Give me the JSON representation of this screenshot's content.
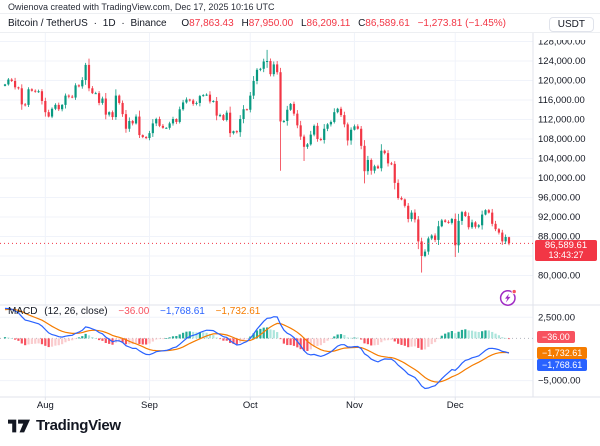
{
  "attribution": {
    "text": "Owienova created with TradingView.com, Dec 17, 2025 10:16 UTC"
  },
  "header": {
    "symbol": "Bitcoin / TetherUS",
    "separator": "·",
    "interval": "1D",
    "exchange": "Binance",
    "o_label": "O",
    "o": "87,863.43",
    "h_label": "H",
    "h": "87,950.00",
    "l_label": "L",
    "l": "86,209.11",
    "c_label": "C",
    "c": "86,589.61",
    "change": "−1,273.81 (−1.45%)"
  },
  "price_axis": {
    "unit": "USDT",
    "ticks": [
      [
        128000,
        "128,000.00"
      ],
      [
        124000,
        "124,000.00"
      ],
      [
        120000,
        "120,000.00"
      ],
      [
        116000,
        "116,000.00"
      ],
      [
        112000,
        "112,000.00"
      ],
      [
        108000,
        "108,000.00"
      ],
      [
        104000,
        "104,000.00"
      ],
      [
        100000,
        "100,000.00"
      ],
      [
        96000,
        "96,000.00"
      ],
      [
        92000,
        "92,000.00"
      ],
      [
        88000,
        "88,000.00"
      ],
      [
        84000,
        "84,000.00"
      ],
      [
        80000,
        "80,000.00"
      ]
    ],
    "last_price_label": "86,589.61",
    "countdown": "13:43:27"
  },
  "macd_pane": {
    "name": "MACD",
    "params": "(12, 26, close)",
    "hist_value": "−36.00",
    "macd_value": "−1,768.61",
    "signal_value": "−1,732.61",
    "axis_ticks": [
      [
        2500,
        "2,500.00"
      ],
      [
        -5000,
        "−5,000.00"
      ]
    ],
    "gridline_values": [
      2500,
      -2500,
      -5000
    ]
  },
  "time_axis": {
    "months": [
      "Aug",
      "Sep",
      "Oct",
      "Nov",
      "Dec"
    ]
  },
  "logo": {
    "text": "TradingView"
  },
  "colors": {
    "up": "#089981",
    "down": "#F23645",
    "macd_line": "#2962FF",
    "signal_line": "#F57C00",
    "hist_grow_above": "#22AB94",
    "hist_fall_above": "#ACE5DC",
    "hist_fall_below": "#F7525F",
    "hist_grow_below": "#FACBCD",
    "grid": "#F0F3FA",
    "separator": "#E0E3EB",
    "axis_text": "#131722",
    "price_line": "#F23645",
    "zero_line": "#B2B5BE",
    "badge_price": "#F23645",
    "badge_hist": "#F7525F",
    "badge_signal": "#F57C00",
    "badge_macd": "#2962FF",
    "magic_purple": "#A02BC4",
    "logo_dark": "#131722"
  },
  "chart_data": {
    "type": "candlestick+macd",
    "symbol": "Bitcoin / TetherUS",
    "interval": "1D",
    "exchange": "Binance",
    "price_ylim": [
      74000,
      129500
    ],
    "price_grid_step": 4000,
    "last_price": 86589.61,
    "current_candle": [
      87863.43,
      87950.0,
      86209.11,
      86589.61
    ],
    "macd_display": {
      "histogram": -36.0,
      "macd": -1768.61,
      "signal": -1732.61,
      "fast": 12,
      "slow": 26,
      "source": "close"
    },
    "macd_ylim": [
      -6800,
      3800
    ],
    "months": [
      "Aug",
      "Sep",
      "Oct",
      "Nov",
      "Dec"
    ],
    "month_start_indices": [
      12,
      43,
      73,
      104,
      134
    ],
    "prehistory_closes": [
      103300,
      102100,
      101000,
      105200,
      105900,
      107200,
      107100,
      107300,
      108400,
      107500,
      107200,
      105700,
      105400,
      108900,
      108000,
      108200,
      108100,
      108300,
      108900,
      111300,
      115900,
      117500,
      117400,
      119900,
      123100,
      119800,
      117700,
      119100,
      118700,
      117900
    ],
    "closes": [
      119200,
      120200,
      119900,
      118600,
      118400,
      115100,
      115000,
      118200,
      117900,
      117700,
      117800,
      115800,
      113500,
      112600,
      114200,
      115000,
      114100,
      115000,
      116900,
      116700,
      116500,
      119000,
      118800,
      120100,
      123200,
      118400,
      117400,
      117400,
      115400,
      116300,
      113000,
      113500,
      112500,
      116900,
      115400,
      113100,
      110100,
      111700,
      111200,
      112600,
      108800,
      108400,
      108200,
      109200,
      111200,
      112100,
      110700,
      110300,
      110300,
      111200,
      112100,
      111500,
      114100,
      115500,
      116100,
      115900,
      115200,
      115400,
      116800,
      117000,
      117100,
      115700,
      115800,
      112800,
      112900,
      111900,
      113400,
      109200,
      109600,
      109400,
      112100,
      114100,
      114000,
      116900,
      119900,
      122200,
      122400,
      123900,
      124000,
      121300,
      123300,
      121700,
      111600,
      111700,
      114000,
      115200,
      113200,
      110800,
      108500,
      106400,
      106900,
      108900,
      110700,
      108000,
      107800,
      110100,
      111000,
      111500,
      113500,
      114200,
      112900,
      111000,
      107700,
      109900,
      110600,
      110100,
      106600,
      101400,
      103700,
      101500,
      102400,
      102000,
      105600,
      105100,
      103000,
      102900,
      99000,
      95900,
      95600,
      94300,
      91600,
      92900,
      91500,
      87000,
      84000,
      84900,
      87600,
      88200,
      87300,
      90100,
      91300,
      91000,
      90800,
      91600,
      86200,
      91200,
      93000,
      92200,
      89900,
      90900,
      90000,
      90300,
      92500,
      93400,
      92900,
      90600,
      89500,
      88800,
      87000,
      87900,
      86589.61
    ],
    "wick_overrides": {
      "25": [
        124500,
        117800
      ],
      "78": [
        126270,
        122600
      ],
      "82": [
        122600,
        101500
      ],
      "89": [
        null,
        103500
      ],
      "107": [
        null,
        98900
      ],
      "124": [
        null,
        80600
      ],
      "134": [
        null,
        83800
      ]
    }
  }
}
